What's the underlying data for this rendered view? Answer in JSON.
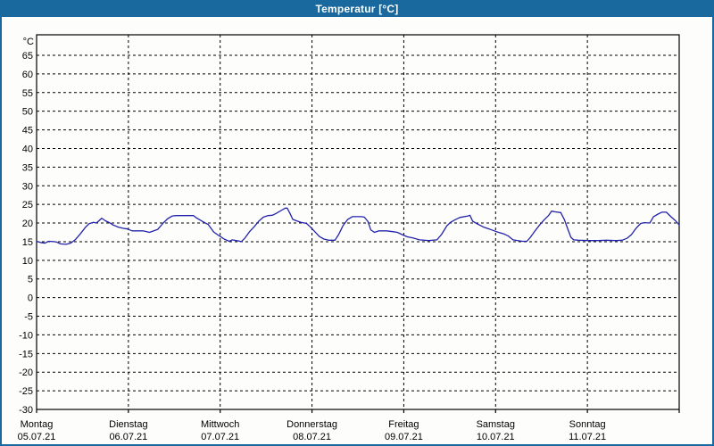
{
  "window": {
    "title": "Temperatur [°C]",
    "titlebar_color": "#1a699e",
    "border_color": "#1a699e",
    "background": "#fdfdfb"
  },
  "chart_data": {
    "type": "line",
    "title": "Temperatur [°C]",
    "y_unit_label": "°C",
    "ylabel": "",
    "xlabel": "",
    "ylim": [
      -30,
      70.5
    ],
    "xlim_days": [
      0,
      7
    ],
    "y_ticks": [
      65,
      60,
      55,
      50,
      45,
      40,
      35,
      30,
      25,
      20,
      15,
      10,
      5,
      0,
      -5,
      -10,
      -15,
      -20,
      -25,
      -30
    ],
    "grid": "dashed",
    "legend_position": "none",
    "line_color": "#2222aa",
    "axis_color": "#000000",
    "x_days": [
      {
        "weekday": "Montag",
        "date": "05.07.21"
      },
      {
        "weekday": "Dienstag",
        "date": "06.07.21"
      },
      {
        "weekday": "Mittwoch",
        "date": "07.07.21"
      },
      {
        "weekday": "Donnerstag",
        "date": "08.07.21"
      },
      {
        "weekday": "Freitag",
        "date": "09.07.21"
      },
      {
        "weekday": "Samstag",
        "date": "10.07.21"
      },
      {
        "weekday": "Sonntag",
        "date": "11.07.21"
      }
    ],
    "series": [
      {
        "name": "Temperatur",
        "points": [
          [
            0.0,
            15.1
          ],
          [
            0.04,
            14.8
          ],
          [
            0.09,
            14.6
          ],
          [
            0.13,
            15.1
          ],
          [
            0.19,
            15.0
          ],
          [
            0.22,
            14.9
          ],
          [
            0.26,
            14.4
          ],
          [
            0.32,
            14.3
          ],
          [
            0.37,
            14.6
          ],
          [
            0.42,
            15.5
          ],
          [
            0.48,
            17.2
          ],
          [
            0.53,
            18.8
          ],
          [
            0.57,
            19.8
          ],
          [
            0.62,
            20.2
          ],
          [
            0.65,
            20.0
          ],
          [
            0.68,
            20.6
          ],
          [
            0.71,
            21.3
          ],
          [
            0.75,
            20.6
          ],
          [
            0.8,
            20.0
          ],
          [
            0.83,
            19.5
          ],
          [
            0.89,
            18.9
          ],
          [
            0.94,
            18.6
          ],
          [
            0.99,
            18.4
          ],
          [
            1.04,
            17.9
          ],
          [
            1.16,
            17.9
          ],
          [
            1.23,
            17.5
          ],
          [
            1.32,
            18.3
          ],
          [
            1.38,
            20.0
          ],
          [
            1.43,
            21.2
          ],
          [
            1.48,
            21.9
          ],
          [
            1.52,
            22.0
          ],
          [
            1.71,
            22.0
          ],
          [
            1.74,
            21.4
          ],
          [
            1.81,
            20.4
          ],
          [
            1.87,
            19.6
          ],
          [
            1.93,
            17.6
          ],
          [
            2.0,
            16.4
          ],
          [
            2.05,
            15.6
          ],
          [
            2.1,
            15.1
          ],
          [
            2.13,
            15.5
          ],
          [
            2.2,
            15.2
          ],
          [
            2.23,
            15.0
          ],
          [
            2.27,
            16.0
          ],
          [
            2.32,
            17.7
          ],
          [
            2.37,
            19.0
          ],
          [
            2.42,
            20.5
          ],
          [
            2.47,
            21.6
          ],
          [
            2.52,
            22.0
          ],
          [
            2.57,
            22.1
          ],
          [
            2.61,
            22.6
          ],
          [
            2.68,
            23.6
          ],
          [
            2.71,
            24.0
          ],
          [
            2.73,
            24.0
          ],
          [
            2.76,
            22.6
          ],
          [
            2.79,
            21.0
          ],
          [
            2.83,
            20.6
          ],
          [
            2.88,
            20.2
          ],
          [
            2.94,
            19.9
          ],
          [
            2.98,
            19.0
          ],
          [
            3.03,
            17.7
          ],
          [
            3.08,
            16.4
          ],
          [
            3.13,
            15.7
          ],
          [
            3.18,
            15.4
          ],
          [
            3.25,
            15.4
          ],
          [
            3.29,
            16.9
          ],
          [
            3.34,
            19.4
          ],
          [
            3.39,
            21.0
          ],
          [
            3.44,
            21.7
          ],
          [
            3.54,
            21.7
          ],
          [
            3.57,
            21.6
          ],
          [
            3.61,
            20.4
          ],
          [
            3.64,
            18.2
          ],
          [
            3.68,
            17.5
          ],
          [
            3.73,
            17.9
          ],
          [
            3.81,
            17.9
          ],
          [
            3.88,
            17.7
          ],
          [
            3.93,
            17.5
          ],
          [
            3.99,
            16.8
          ],
          [
            4.04,
            16.3
          ],
          [
            4.1,
            16.0
          ],
          [
            4.17,
            15.5
          ],
          [
            4.27,
            15.3
          ],
          [
            4.36,
            15.5
          ],
          [
            4.41,
            16.9
          ],
          [
            4.44,
            18.1
          ],
          [
            4.47,
            19.3
          ],
          [
            4.51,
            20.2
          ],
          [
            4.56,
            20.9
          ],
          [
            4.61,
            21.5
          ],
          [
            4.7,
            21.9
          ],
          [
            4.72,
            22.1
          ],
          [
            4.75,
            20.5
          ],
          [
            4.8,
            19.8
          ],
          [
            4.87,
            18.9
          ],
          [
            4.93,
            18.4
          ],
          [
            5.01,
            17.7
          ],
          [
            5.09,
            17.1
          ],
          [
            5.14,
            16.5
          ],
          [
            5.19,
            15.5
          ],
          [
            5.29,
            15.1
          ],
          [
            5.34,
            15.1
          ],
          [
            5.38,
            16.2
          ],
          [
            5.43,
            17.9
          ],
          [
            5.48,
            19.5
          ],
          [
            5.53,
            20.9
          ],
          [
            5.58,
            22.1
          ],
          [
            5.61,
            23.2
          ],
          [
            5.65,
            23.0
          ],
          [
            5.71,
            22.8
          ],
          [
            5.75,
            20.9
          ],
          [
            5.79,
            18.2
          ],
          [
            5.82,
            16.2
          ],
          [
            5.85,
            15.5
          ],
          [
            5.9,
            15.4
          ],
          [
            6.02,
            15.3
          ],
          [
            6.11,
            15.3
          ],
          [
            6.21,
            15.4
          ],
          [
            6.31,
            15.3
          ],
          [
            6.38,
            15.4
          ],
          [
            6.43,
            15.9
          ],
          [
            6.48,
            16.9
          ],
          [
            6.53,
            18.6
          ],
          [
            6.58,
            19.9
          ],
          [
            6.62,
            20.1
          ],
          [
            6.68,
            20.0
          ],
          [
            6.72,
            21.7
          ],
          [
            6.77,
            22.4
          ],
          [
            6.81,
            22.9
          ],
          [
            6.86,
            22.9
          ],
          [
            6.91,
            21.7
          ],
          [
            6.96,
            20.6
          ],
          [
            7.0,
            19.5
          ]
        ]
      }
    ]
  }
}
